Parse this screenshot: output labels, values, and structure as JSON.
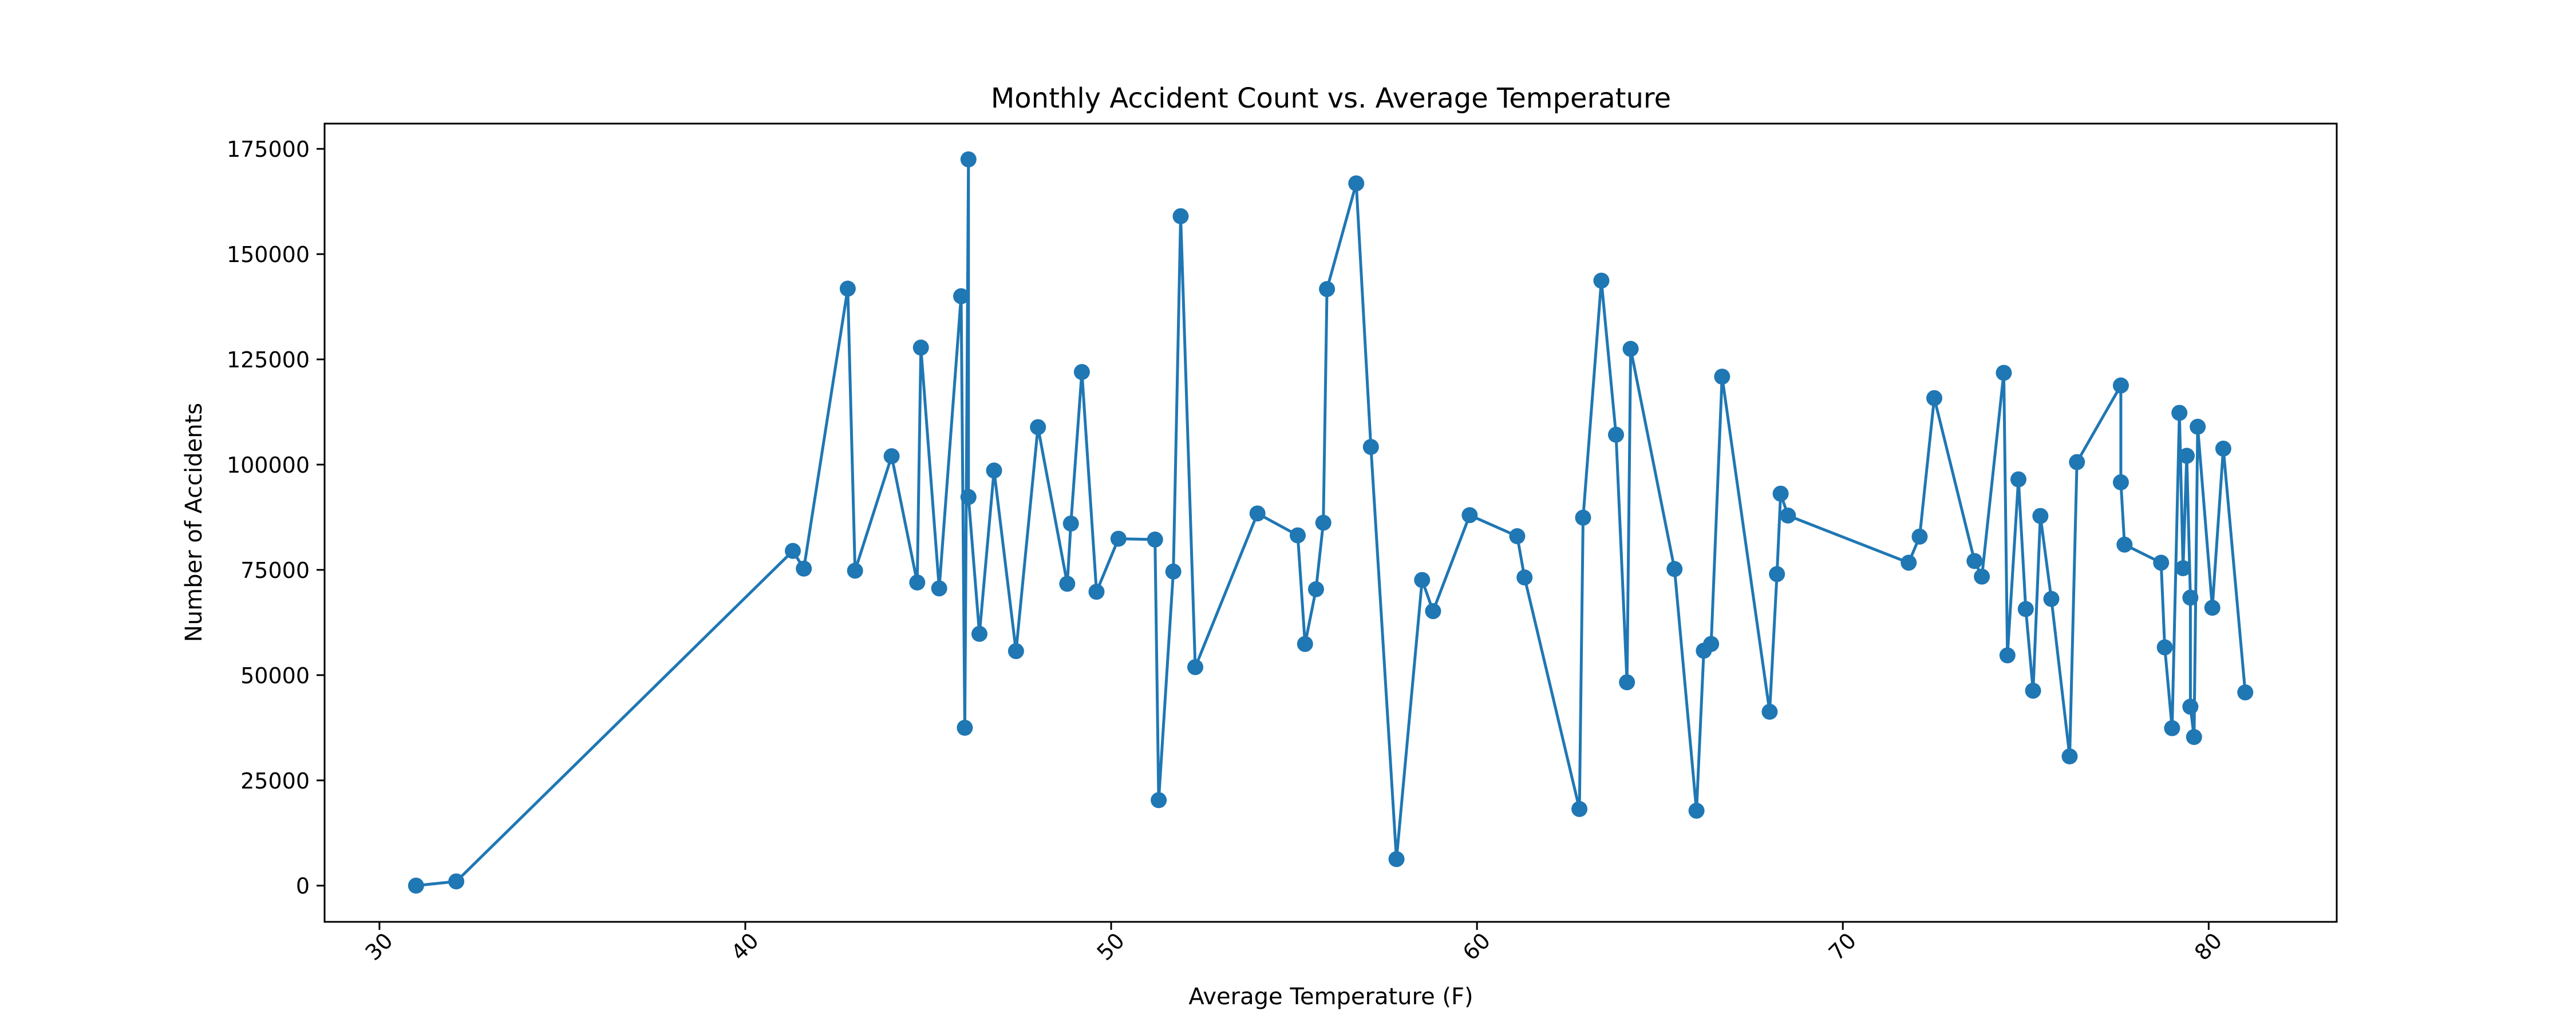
{
  "chart_data": {
    "type": "line",
    "title": "Monthly Accident Count vs. Average Temperature",
    "xlabel": "Average Temperature (F)",
    "ylabel": "Number of Accidents",
    "xlim": [
      28.5,
      83.5
    ],
    "ylim": [
      -8600,
      181000
    ],
    "xticks": [
      30,
      40,
      50,
      60,
      70,
      80
    ],
    "xtick_labels": [
      "30",
      "40",
      "50",
      "60",
      "70",
      "80"
    ],
    "yticks": [
      0,
      25000,
      50000,
      75000,
      100000,
      125000,
      150000,
      175000
    ],
    "ytick_labels": [
      "0",
      "25000",
      "50000",
      "75000",
      "100000",
      "125000",
      "150000",
      "175000"
    ],
    "grid": false,
    "marker": "circle",
    "color": "#1f77b4",
    "series": [
      {
        "x": [
          31.0,
          32.1,
          41.3,
          41.6,
          42.8,
          43.0,
          44.0,
          44.7,
          44.8,
          45.3,
          45.9,
          46.0,
          46.1,
          46.1,
          46.4,
          46.8,
          47.4,
          48.0,
          48.8,
          48.9,
          49.2,
          49.6,
          50.2,
          51.2,
          51.3,
          51.7,
          51.9,
          52.3,
          54.0,
          55.1,
          55.3,
          55.6,
          55.8,
          55.9,
          56.7,
          57.1,
          57.8,
          58.5,
          58.8,
          59.8,
          61.1,
          61.3,
          62.8,
          62.9,
          63.4,
          63.8,
          64.1,
          64.2,
          65.4,
          66.0,
          66.2,
          66.4,
          66.7,
          68.0,
          68.2,
          68.3,
          68.5,
          71.8,
          72.1,
          72.5,
          73.6,
          73.8,
          74.4,
          74.5,
          74.8,
          75.0,
          75.2,
          75.4,
          75.7,
          76.2,
          76.4,
          77.6,
          77.6,
          77.7,
          78.7,
          78.8,
          79.0,
          79.2,
          79.3,
          79.4,
          79.5,
          79.5,
          79.6,
          79.7,
          80.1,
          80.4,
          81.0
        ],
        "y": [
          0,
          1000,
          79500,
          75300,
          141800,
          74800,
          102000,
          72000,
          127800,
          70600,
          140000,
          37500,
          172500,
          92300,
          59800,
          98600,
          55700,
          108900,
          71700,
          86000,
          122000,
          69800,
          82400,
          82200,
          20300,
          74600,
          159000,
          51900,
          88400,
          83200,
          57400,
          70400,
          86200,
          141700,
          166800,
          104200,
          6300,
          72600,
          65200,
          88000,
          83000,
          73200,
          18200,
          87400,
          143700,
          107100,
          48300,
          127500,
          75200,
          17800,
          55800,
          57400,
          120900,
          41300,
          74000,
          93100,
          87900,
          76700,
          82900,
          115800,
          77100,
          73400,
          121800,
          54700,
          96500,
          65700,
          46300,
          87800,
          68100,
          30700,
          100600,
          118800,
          95800,
          81000,
          76700,
          56600,
          37400,
          112300,
          75400,
          102100,
          68400,
          42500,
          35300,
          109000,
          66000,
          103800,
          45900
        ]
      }
    ]
  }
}
